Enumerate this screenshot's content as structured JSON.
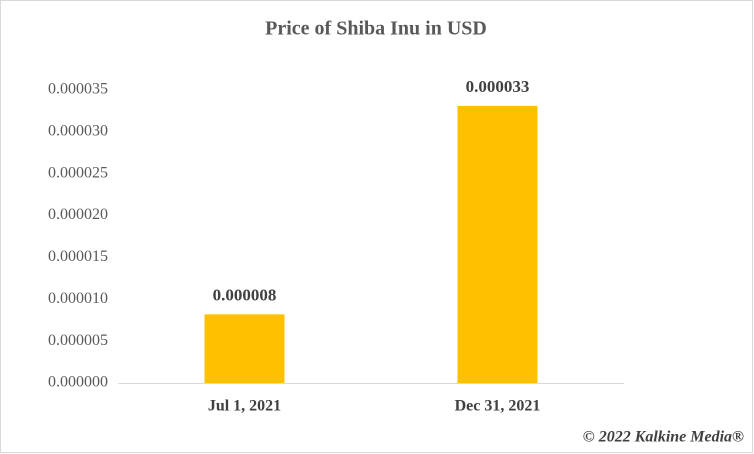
{
  "chart_data": {
    "type": "bar",
    "title": "Price of Shiba Inu in USD",
    "categories": [
      "Jul 1, 2021",
      "Dec 31, 2021"
    ],
    "values": [
      8.2e-06,
      3.31e-05
    ],
    "value_labels": [
      "0.000008",
      "0.000033"
    ],
    "color": "#ffc000",
    "ylim": [
      0,
      3.5e-05
    ],
    "yticks": [
      {
        "value": 0,
        "label": "0.000000"
      },
      5e-06,
      {
        "value": 1e-05,
        "label": "0.000010"
      },
      1.5e-05,
      {
        "value": 2e-05,
        "label": "0.000020"
      },
      2.5e-05,
      {
        "value": 3e-05,
        "label": "0.000030"
      },
      3.5e-05
    ],
    "grid": false,
    "watermark": "© 2022 Kalkine Media®"
  }
}
